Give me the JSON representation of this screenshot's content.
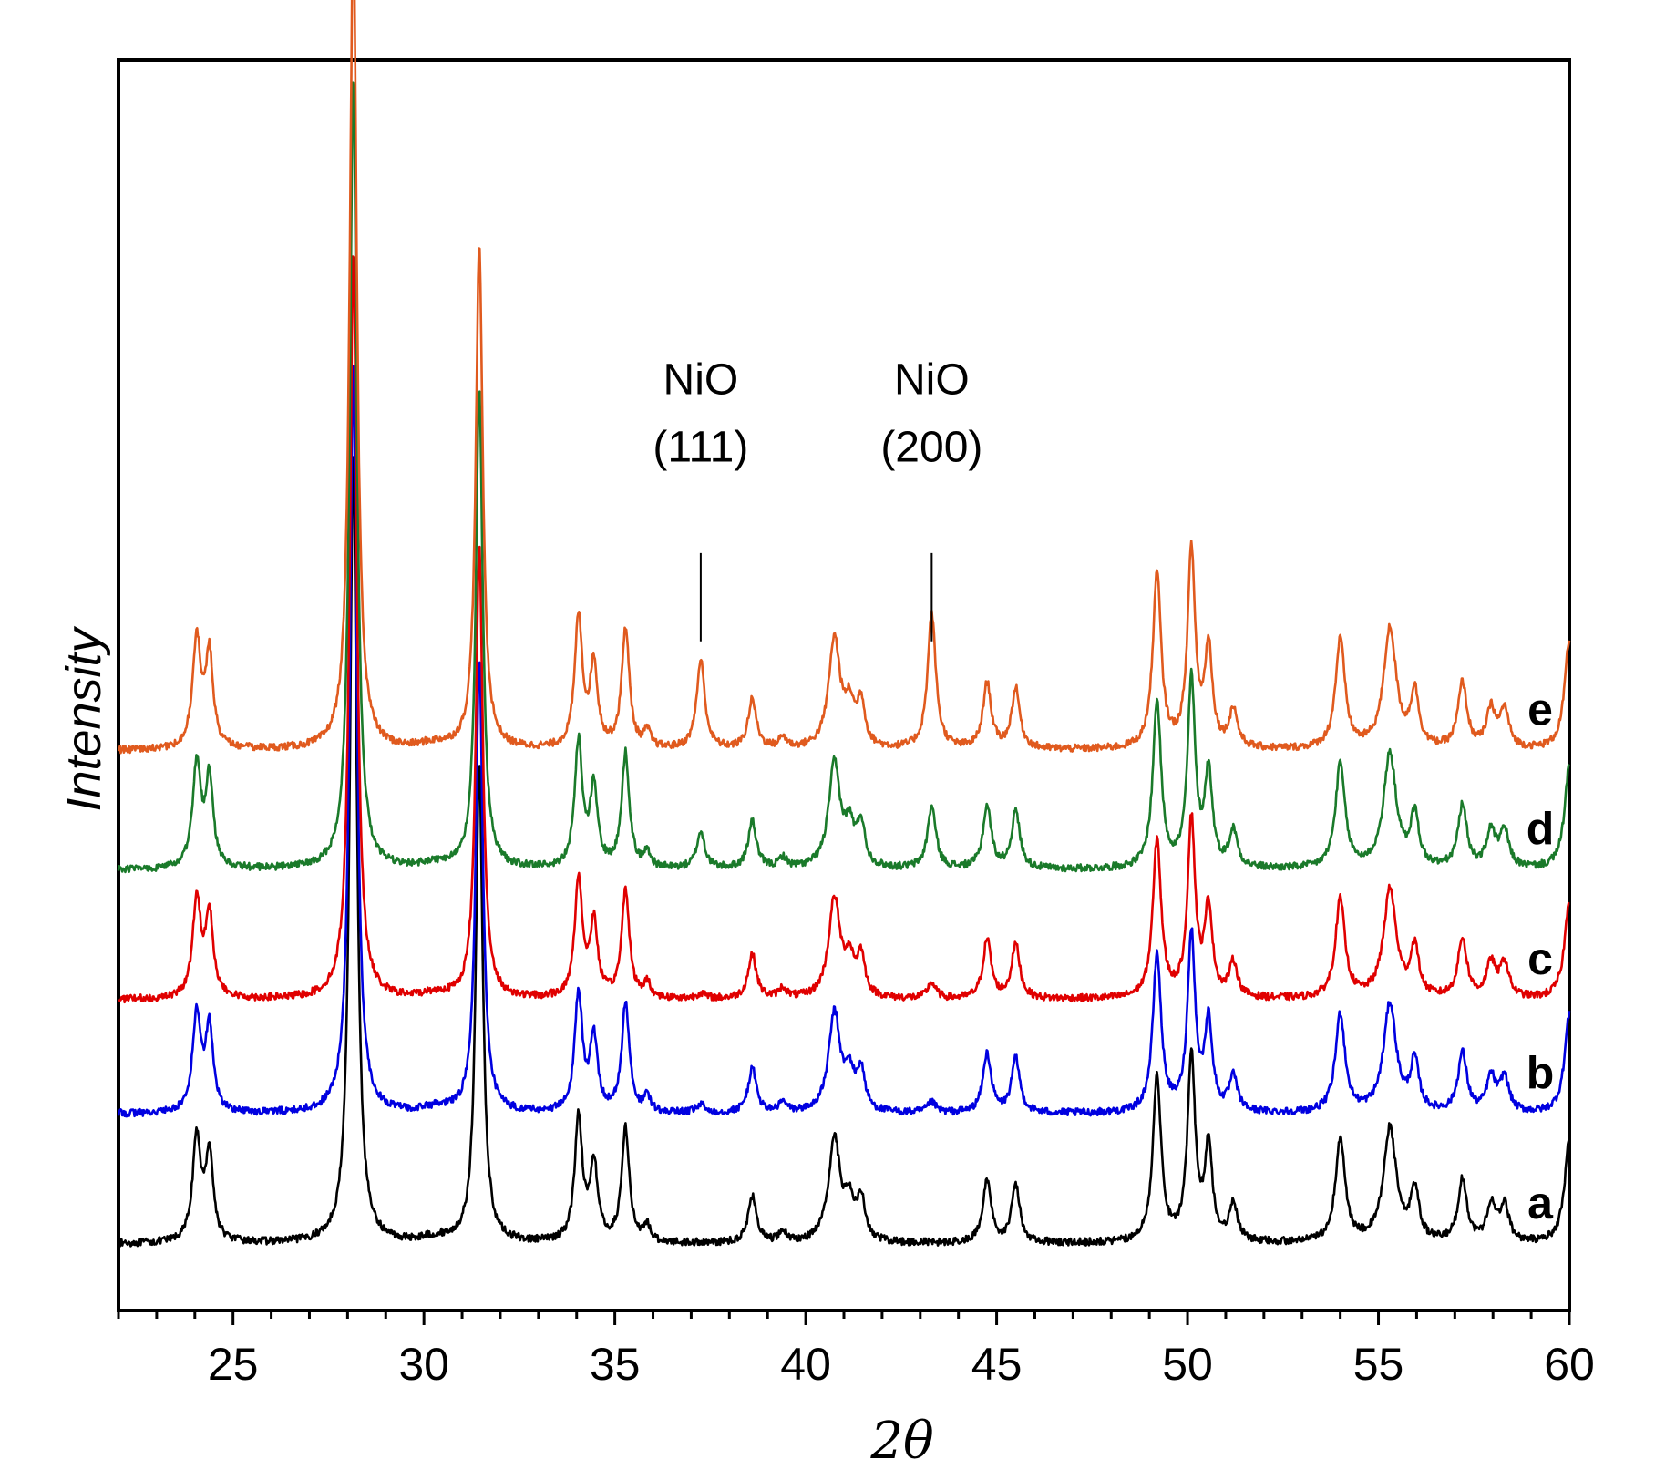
{
  "chart_data": {
    "type": "line",
    "title": "",
    "xlabel": "2θ",
    "ylabel": "Intensity",
    "xlim": [
      22,
      60
    ],
    "ylim": [
      0,
      12
    ],
    "x_ticks": [
      25,
      30,
      35,
      40,
      45,
      50,
      55,
      60
    ],
    "x_tick_labels": [
      "25",
      "30",
      "35",
      "40",
      "45",
      "50",
      "55",
      "60"
    ],
    "grid": false,
    "legend": "labels at right end of each trace",
    "peaks": [
      {
        "x": 24.05,
        "h": 1.0,
        "w": 0.13
      },
      {
        "x": 24.38,
        "h": 0.85,
        "w": 0.12
      },
      {
        "x": 28.15,
        "h": 7.6,
        "w": 0.11
      },
      {
        "x": 31.45,
        "h": 4.6,
        "w": 0.11
      },
      {
        "x": 34.05,
        "h": 1.2,
        "w": 0.12
      },
      {
        "x": 34.45,
        "h": 0.75,
        "w": 0.12
      },
      {
        "x": 35.28,
        "h": 1.1,
        "w": 0.12
      },
      {
        "x": 35.85,
        "h": 0.15,
        "w": 0.1
      },
      {
        "x": 38.6,
        "h": 0.45,
        "w": 0.13
      },
      {
        "x": 39.4,
        "h": 0.1,
        "w": 0.12
      },
      {
        "x": 40.75,
        "h": 1.0,
        "w": 0.18
      },
      {
        "x": 41.15,
        "h": 0.35,
        "w": 0.15
      },
      {
        "x": 41.45,
        "h": 0.4,
        "w": 0.12
      },
      {
        "x": 44.75,
        "h": 0.6,
        "w": 0.13
      },
      {
        "x": 45.5,
        "h": 0.55,
        "w": 0.13
      },
      {
        "x": 49.2,
        "h": 1.6,
        "w": 0.13
      },
      {
        "x": 50.1,
        "h": 1.8,
        "w": 0.12
      },
      {
        "x": 50.55,
        "h": 0.9,
        "w": 0.12
      },
      {
        "x": 51.2,
        "h": 0.35,
        "w": 0.13
      },
      {
        "x": 54.0,
        "h": 1.0,
        "w": 0.15
      },
      {
        "x": 55.3,
        "h": 1.1,
        "w": 0.2
      },
      {
        "x": 55.95,
        "h": 0.5,
        "w": 0.13
      },
      {
        "x": 57.2,
        "h": 0.6,
        "w": 0.14
      },
      {
        "x": 57.95,
        "h": 0.35,
        "w": 0.14
      },
      {
        "x": 58.3,
        "h": 0.35,
        "w": 0.14
      },
      {
        "x": 60.0,
        "h": 1.0,
        "w": 0.15
      }
    ],
    "series": [
      {
        "name": "a",
        "label": "a",
        "color": "#000000",
        "offset": 0.0,
        "scale": 1.0,
        "nio111": 0.0,
        "nio200": 0.0
      },
      {
        "name": "b",
        "label": "b",
        "color": "#0000e0",
        "offset": 1.25,
        "scale": 0.95,
        "nio111": 0.08,
        "nio200": 0.1
      },
      {
        "name": "c",
        "label": "c",
        "color": "#e00000",
        "offset": 2.35,
        "scale": 0.95,
        "nio111": 0.05,
        "nio200": 0.15
      },
      {
        "name": "d",
        "label": "d",
        "color": "#1a7a2a",
        "offset": 3.6,
        "scale": 1.0,
        "nio111": 0.35,
        "nio200": 0.6
      },
      {
        "name": "e",
        "label": "e",
        "color": "#e05a1e",
        "offset": 4.75,
        "scale": 1.05,
        "nio111": 0.85,
        "nio200": 1.3
      }
    ],
    "nio_peaks": [
      {
        "x": 37.25,
        "w": 0.13
      },
      {
        "x": 43.3,
        "w": 0.13
      }
    ],
    "annotations": [
      {
        "name": "nio-111",
        "line1": "NiO",
        "line2": "(111)",
        "x": 37.25,
        "y_bottom": 7.0,
        "y_top": 8.0
      },
      {
        "name": "nio-200",
        "line1": "NiO",
        "line2": "(200)",
        "x": 43.3,
        "y_bottom": 7.0,
        "y_top": 8.0
      }
    ]
  }
}
